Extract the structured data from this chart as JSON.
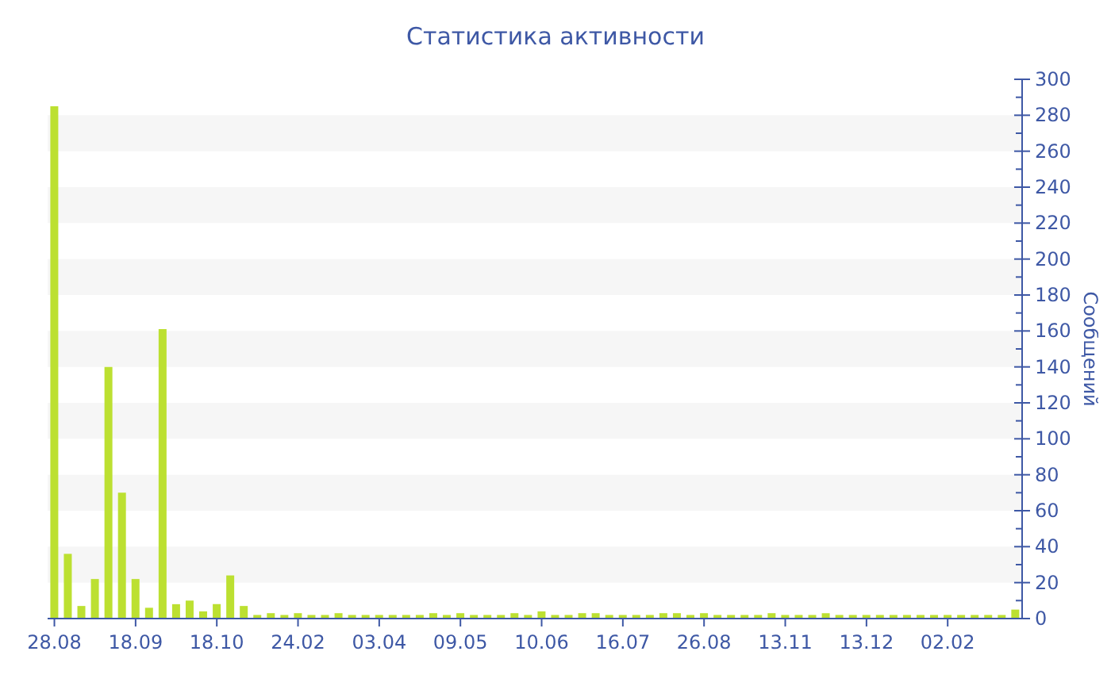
{
  "chart_data": {
    "type": "bar",
    "title": "Статистика активности",
    "ylabel": "Сообщений",
    "categories": [
      "28.08",
      null,
      null,
      null,
      null,
      null,
      "18.09",
      null,
      null,
      null,
      null,
      null,
      "18.10",
      null,
      null,
      null,
      null,
      null,
      "24.02",
      null,
      null,
      null,
      null,
      null,
      "03.04",
      null,
      null,
      null,
      null,
      null,
      "09.05",
      null,
      null,
      null,
      null,
      null,
      "10.06",
      null,
      null,
      null,
      null,
      null,
      "16.07",
      null,
      null,
      null,
      null,
      null,
      "26.08",
      null,
      null,
      null,
      null,
      null,
      "13.11",
      null,
      null,
      null,
      null,
      null,
      "13.12",
      null,
      null,
      null,
      null,
      null,
      "02.02",
      null,
      null,
      null,
      null,
      null
    ],
    "values": [
      285,
      36,
      7,
      22,
      140,
      70,
      22,
      6,
      161,
      8,
      10,
      4,
      8,
      24,
      7,
      2,
      3,
      2,
      3,
      2,
      2,
      3,
      2,
      2,
      2,
      2,
      2,
      2,
      3,
      2,
      3,
      2,
      2,
      2,
      3,
      2,
      4,
      2,
      2,
      3,
      3,
      2,
      2,
      2,
      2,
      3,
      3,
      2,
      3,
      2,
      2,
      2,
      2,
      3,
      2,
      2,
      2,
      3,
      2,
      2,
      2,
      2,
      2,
      2,
      2,
      2,
      2,
      2,
      2,
      2,
      2,
      5
    ],
    "color": "#bce031",
    "ylim": [
      0,
      300
    ],
    "yticks": [
      0,
      {
        "value": 10,
        "label": null
      },
      20,
      {
        "value": 30,
        "label": null
      },
      40,
      {
        "value": 50,
        "label": null
      },
      60,
      {
        "value": 70,
        "label": null
      },
      80,
      {
        "value": 90,
        "label": null
      },
      100,
      {
        "value": 110,
        "label": null
      },
      120,
      {
        "value": 130,
        "label": null
      },
      140,
      {
        "value": 150,
        "label": null
      },
      160,
      {
        "value": 170,
        "label": null
      },
      180,
      {
        "value": 190,
        "label": null
      },
      200,
      {
        "value": 210,
        "label": null
      },
      220,
      {
        "value": 230,
        "label": null
      },
      240,
      {
        "value": 250,
        "label": null
      },
      260,
      {
        "value": 270,
        "label": null
      },
      280,
      {
        "value": 290,
        "label": null
      },
      300
    ],
    "bands": [
      {
        "axis": "y",
        "from": 20,
        "to": 40,
        "color": "#f6f6f6"
      },
      {
        "axis": "y",
        "from": 60,
        "to": 80,
        "color": "#f6f6f6"
      },
      {
        "axis": "y",
        "from": 100,
        "to": 120,
        "color": "#f6f6f6"
      },
      {
        "axis": "y",
        "from": 140,
        "to": 160,
        "color": "#f6f6f6"
      },
      {
        "axis": "y",
        "from": 180,
        "to": 200,
        "color": "#f6f6f6"
      },
      {
        "axis": "y",
        "from": 220,
        "to": 240,
        "color": "#f6f6f6"
      },
      {
        "axis": "y",
        "from": 260,
        "to": 280,
        "color": "#f6f6f6"
      }
    ]
  }
}
